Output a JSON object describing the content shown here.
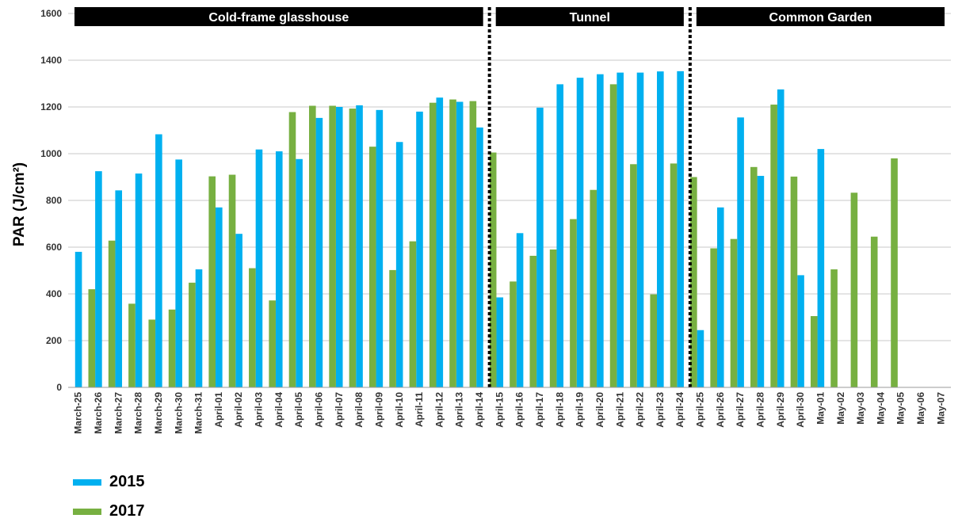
{
  "chart_data": {
    "type": "bar",
    "ylabel": "PAR (J/cm²)",
    "ylim": [
      0,
      1600
    ],
    "yticks": [
      "0",
      "200",
      "400",
      "600",
      "800",
      "1000",
      "1200",
      "1400",
      "1600"
    ],
    "grid": true,
    "legend_position": "bottom-left",
    "categories": [
      "March-25",
      "March-26",
      "March-27",
      "March-28",
      "March-29",
      "March-30",
      "March-31",
      "April-01",
      "April-02",
      "April-03",
      "April-04",
      "April-05",
      "April-06",
      "April-07",
      "April-08",
      "April-09",
      "April-10",
      "April-11",
      "April-12",
      "April-13",
      "April-14",
      "April-15",
      "April-16",
      "April-17",
      "April-18",
      "April-19",
      "April-20",
      "April-21",
      "April-22",
      "April-23",
      "April-24",
      "April-25",
      "April-26",
      "April-27",
      "April-28",
      "April-29",
      "April-30",
      "May-01",
      "May-02",
      "May-03",
      "May-04",
      "May-05",
      "May-06",
      "May-07"
    ],
    "series": [
      {
        "name": "2015",
        "color": "#00b0f0",
        "values": [
          580,
          925,
          843,
          915,
          1083,
          975,
          505,
          770,
          657,
          1018,
          1010,
          977,
          1153,
          1200,
          1207,
          1187,
          1050,
          1180,
          1240,
          1222,
          1112,
          385,
          660,
          1197,
          1297,
          1325,
          1340,
          1347,
          1347,
          1352,
          1353,
          245,
          770,
          1155,
          905,
          1275,
          480,
          1020,
          null,
          null,
          null,
          null,
          null,
          null
        ]
      },
      {
        "name": "2017",
        "color": "#77b041",
        "values": [
          null,
          420,
          628,
          358,
          290,
          333,
          448,
          903,
          910,
          510,
          372,
          1178,
          1205,
          1205,
          1193,
          1030,
          502,
          625,
          1218,
          1232,
          1225,
          1005,
          453,
          563,
          590,
          720,
          845,
          1297,
          955,
          398,
          958,
          900,
          595,
          635,
          943,
          1210,
          902,
          305,
          505,
          833,
          645,
          980,
          null,
          null
        ]
      }
    ],
    "sections": [
      {
        "label": "Cold-frame glasshouse",
        "start": 0,
        "end": 20
      },
      {
        "label": "Tunnel",
        "start": 21,
        "end": 30
      },
      {
        "label": "Common Garden",
        "start": 31,
        "end": 43
      }
    ]
  }
}
